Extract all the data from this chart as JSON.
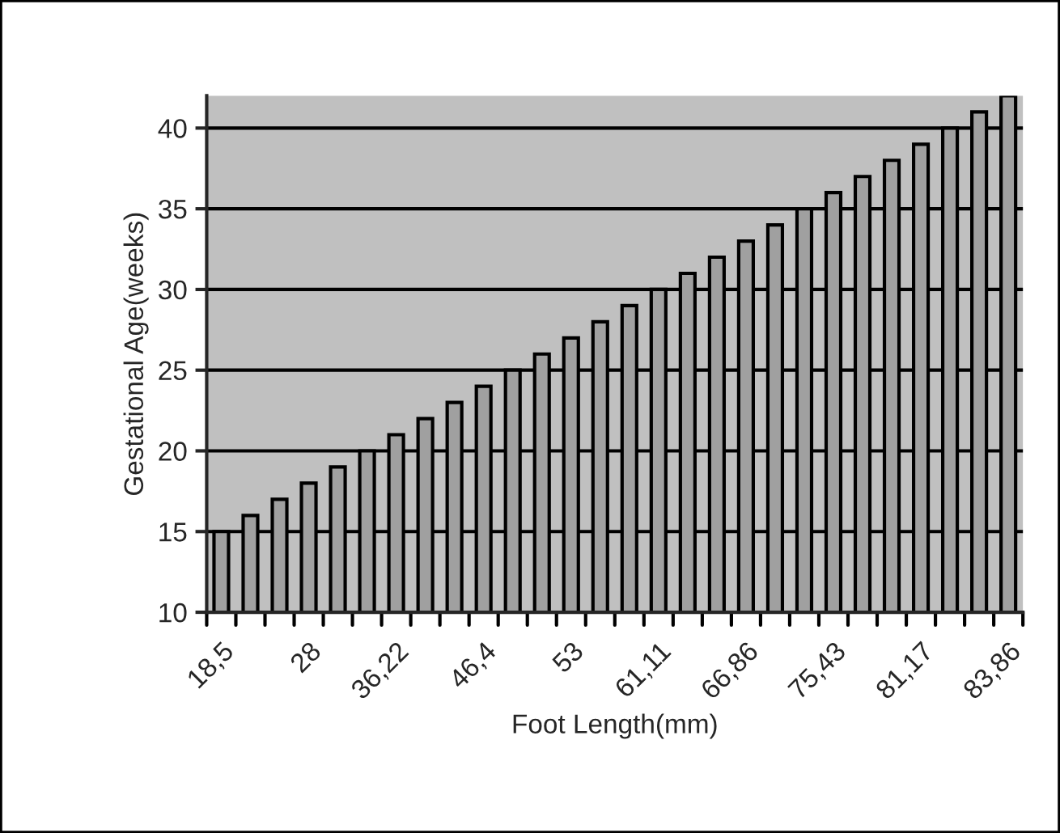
{
  "chart_data": {
    "type": "bar",
    "xlabel": "Foot Length(mm)",
    "ylabel": "Gestational Age(weeks)",
    "categories": [
      "18,5",
      null,
      null,
      "28",
      null,
      null,
      "36,22",
      null,
      null,
      "46,4",
      null,
      null,
      "53",
      null,
      null,
      "61,11",
      null,
      null,
      "66,86",
      null,
      null,
      "75,43",
      null,
      null,
      "81,17",
      null,
      null,
      "83,86"
    ],
    "values": [
      15,
      16,
      17,
      18,
      19,
      20,
      21,
      22,
      23,
      24,
      25,
      26,
      27,
      28,
      29,
      30,
      31,
      32,
      33,
      34,
      35,
      36,
      37,
      38,
      39,
      40,
      41,
      42
    ],
    "color": "#a0a0a0",
    "ylim": [
      10,
      42
    ],
    "yticks": [
      10,
      15,
      20,
      25,
      30,
      35,
      40
    ],
    "grid": "y"
  }
}
